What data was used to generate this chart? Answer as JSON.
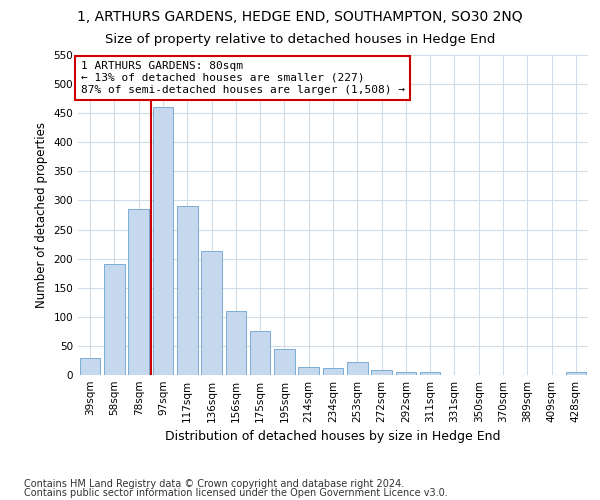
{
  "title": "1, ARTHURS GARDENS, HEDGE END, SOUTHAMPTON, SO30 2NQ",
  "subtitle": "Size of property relative to detached houses in Hedge End",
  "xlabel": "Distribution of detached houses by size in Hedge End",
  "ylabel": "Number of detached properties",
  "categories": [
    "39sqm",
    "58sqm",
    "78sqm",
    "97sqm",
    "117sqm",
    "136sqm",
    "156sqm",
    "175sqm",
    "195sqm",
    "214sqm",
    "234sqm",
    "253sqm",
    "272sqm",
    "292sqm",
    "311sqm",
    "331sqm",
    "350sqm",
    "370sqm",
    "389sqm",
    "409sqm",
    "428sqm"
  ],
  "values": [
    30,
    190,
    285,
    460,
    290,
    213,
    110,
    75,
    45,
    14,
    12,
    22,
    8,
    5,
    5,
    0,
    0,
    0,
    0,
    0,
    5
  ],
  "bar_color": "#c5d8ee",
  "bar_edge_color": "#7aadd4",
  "vline_x_index": 2,
  "vline_color": "#cc0000",
  "annotation_text": "1 ARTHURS GARDENS: 80sqm\n← 13% of detached houses are smaller (227)\n87% of semi-detached houses are larger (1,508) →",
  "annotation_box_color": "#cc0000",
  "ylim": [
    0,
    550
  ],
  "yticks": [
    0,
    50,
    100,
    150,
    200,
    250,
    300,
    350,
    400,
    450,
    500,
    550
  ],
  "footer_line1": "Contains HM Land Registry data © Crown copyright and database right 2024.",
  "footer_line2": "Contains public sector information licensed under the Open Government Licence v3.0.",
  "bg_color": "#ffffff",
  "plot_bg_color": "#ffffff",
  "title_fontsize": 10,
  "subtitle_fontsize": 9.5,
  "xlabel_fontsize": 9,
  "ylabel_fontsize": 8.5,
  "footer_fontsize": 7,
  "tick_fontsize": 7.5,
  "annot_fontsize": 8
}
